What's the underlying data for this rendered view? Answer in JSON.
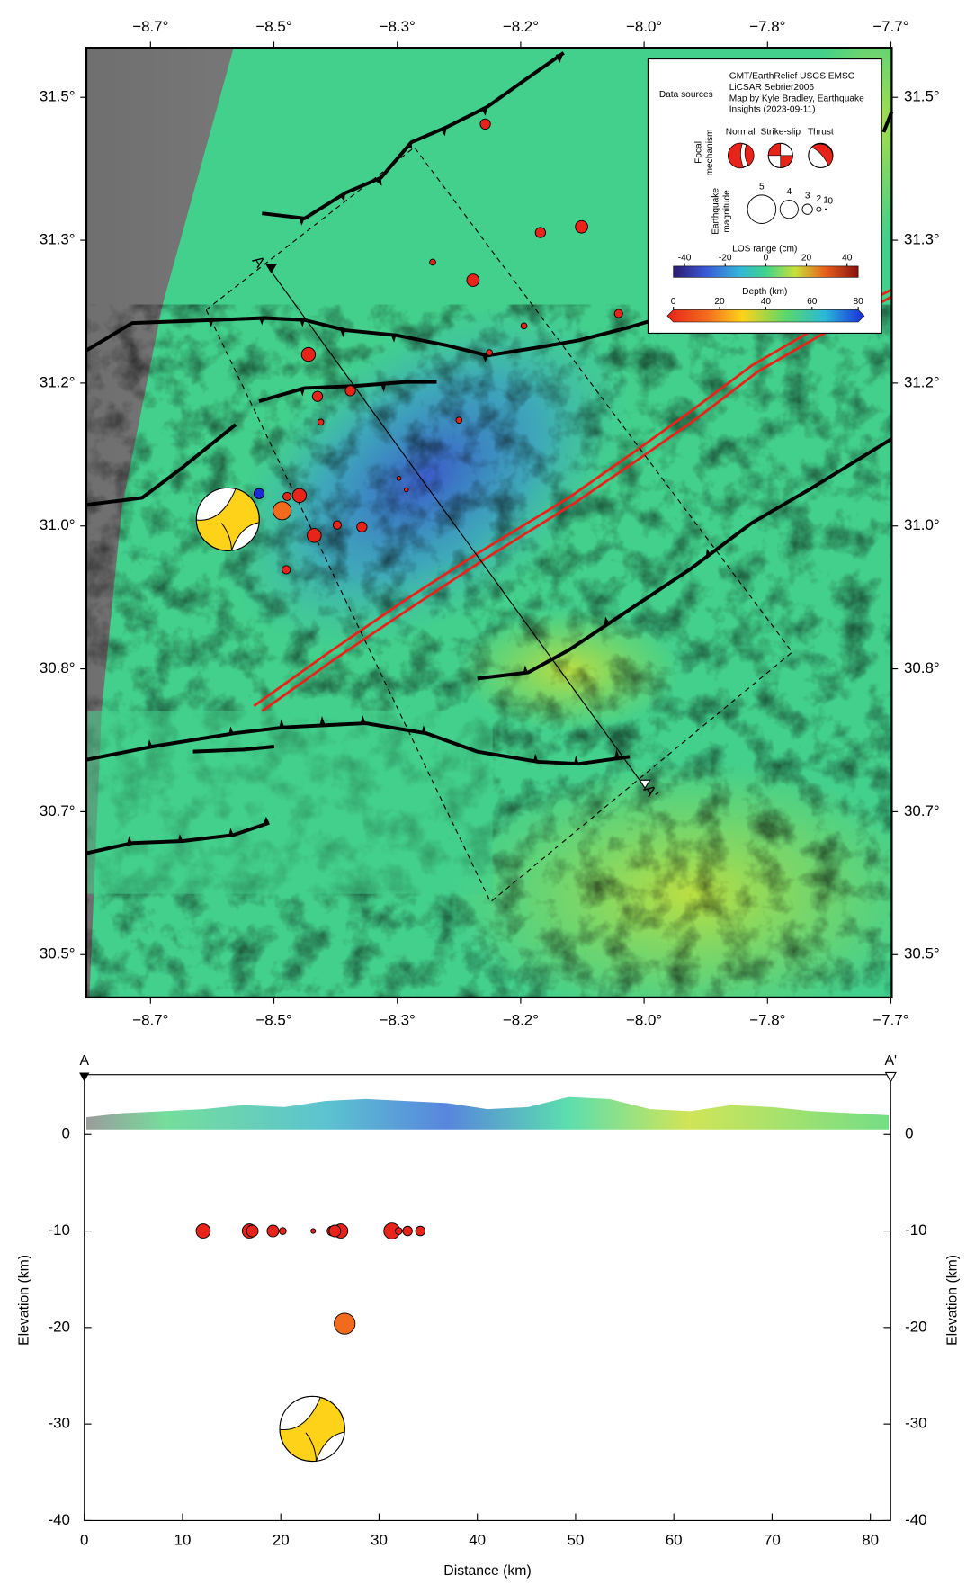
{
  "map": {
    "type": "map",
    "xlim": [
      -8.728,
      -7.749
    ],
    "ylim": [
      30.505,
      31.502
    ],
    "xticks": [
      {
        "value": -8.65,
        "label": "−8.7°"
      },
      {
        "value": -8.5,
        "label": "−8.5°"
      },
      {
        "value": -8.35,
        "label": "−8.3°"
      },
      {
        "value": -8.2,
        "label": "−8.2°"
      },
      {
        "value": -8.05,
        "label": "−8.0°"
      },
      {
        "value": -7.9,
        "label": "−7.8°"
      },
      {
        "value": -7.75,
        "label": "−7.7°"
      }
    ],
    "yticks": [
      {
        "value": 31.45,
        "label": "31.5°"
      },
      {
        "value": 31.3,
        "label": "31.3°"
      },
      {
        "value": 31.15,
        "label": "31.2°"
      },
      {
        "value": 31.0,
        "label": "31.0°"
      },
      {
        "value": 30.85,
        "label": "30.8°"
      },
      {
        "value": 30.7,
        "label": "30.7°"
      },
      {
        "value": 30.55,
        "label": "30.5°"
      }
    ],
    "profile_labels": [
      "A",
      "A'"
    ],
    "events": [
      {
        "lon": -8.243,
        "lat": 31.422,
        "mag": 3.0,
        "color": "#e8231a"
      },
      {
        "lon": -8.126,
        "lat": 31.314,
        "mag": 3.3,
        "color": "#e8231a"
      },
      {
        "lon": -8.176,
        "lat": 31.308,
        "mag": 3.0,
        "color": "#e8231a"
      },
      {
        "lon": -8.258,
        "lat": 31.258,
        "mag": 3.3,
        "color": "#e8231a"
      },
      {
        "lon": -8.307,
        "lat": 31.277,
        "mag": 2.3,
        "color": "#e8231a"
      },
      {
        "lon": -8.196,
        "lat": 31.21,
        "mag": 2.3,
        "color": "#e8231a"
      },
      {
        "lon": -8.238,
        "lat": 31.182,
        "mag": 2.3,
        "color": "#e8231a"
      },
      {
        "lon": -8.081,
        "lat": 31.223,
        "mag": 2.7,
        "color": "#e8231a"
      },
      {
        "lon": -8.458,
        "lat": 31.18,
        "mag": 3.5,
        "color": "#e8231a"
      },
      {
        "lon": -8.407,
        "lat": 31.142,
        "mag": 3.0,
        "color": "#e8231a"
      },
      {
        "lon": -8.447,
        "lat": 31.136,
        "mag": 3.0,
        "color": "#e8231a"
      },
      {
        "lon": -8.443,
        "lat": 31.109,
        "mag": 2.3,
        "color": "#e8231a"
      },
      {
        "lon": -8.275,
        "lat": 31.111,
        "mag": 2.3,
        "color": "#e8231a"
      },
      {
        "lon": -8.469,
        "lat": 31.032,
        "mag": 3.5,
        "color": "#e8231a"
      },
      {
        "lon": -8.484,
        "lat": 31.031,
        "mag": 2.7,
        "color": "#e8231a"
      },
      {
        "lon": -8.49,
        "lat": 31.016,
        "mag": 4.0,
        "color": "#f26b1d"
      },
      {
        "lon": -8.451,
        "lat": 30.99,
        "mag": 3.5,
        "color": "#e8231a"
      },
      {
        "lon": -8.423,
        "lat": 31.001,
        "mag": 2.7,
        "color": "#e8231a"
      },
      {
        "lon": -8.393,
        "lat": 30.999,
        "mag": 3.0,
        "color": "#e8231a"
      },
      {
        "lon": -8.485,
        "lat": 30.954,
        "mag": 2.7,
        "color": "#e8231a"
      },
      {
        "lon": -8.348,
        "lat": 31.05,
        "mag": 1.9,
        "color": "#e8231a"
      },
      {
        "lon": -8.339,
        "lat": 31.038,
        "mag": 1.9,
        "color": "#e8231a"
      },
      {
        "lon": -8.518,
        "lat": 31.034,
        "mag": 3.0,
        "color": "#1a2bd8"
      }
    ],
    "mainshock": {
      "lon": -8.556,
      "lat": 31.007
    }
  },
  "legend": {
    "data_sources_label": "Data sources",
    "sources": [
      "GMT/EarthRelief USGS EMSC",
      "LiCSAR Sebrier2006",
      "Map by Kyle Bradley, Earthquake",
      "Insights (2023-09-11)"
    ],
    "focal_label": [
      "Focal",
      "mechanism"
    ],
    "mechanisms": [
      "Normal",
      "Strike-slip",
      "Thrust"
    ],
    "magnitude_label": [
      "Earthquake",
      "magnitude"
    ],
    "magnitudes": [
      5,
      4,
      3,
      2,
      1,
      0
    ],
    "los_label": "LOS range (cm)",
    "los_lim": [
      -45.5,
      45.5
    ],
    "los_ticks": [
      -40,
      -20,
      0,
      20,
      40
    ],
    "depth_label": "Depth (km)",
    "depth_lim": [
      0,
      80
    ],
    "depth_ticks": [
      0,
      20,
      40,
      60,
      80
    ]
  },
  "chart_data": {
    "type": "scatter",
    "xlabel": "Distance (km)",
    "ylabel": "Elevation (km)",
    "xlim": [
      0,
      82.07
    ],
    "ylim": [
      -40,
      6.2
    ],
    "xticks": [
      0,
      10,
      20,
      30,
      40,
      50,
      60,
      70,
      80
    ],
    "yticks": [
      -40,
      -30,
      -20,
      -10,
      0
    ],
    "points": {
      "x": [
        12.1,
        16.8,
        17.1,
        19.2,
        20.2,
        23.3,
        25.2,
        26.1,
        31.3,
        32.0,
        32.9,
        34.2,
        25.5,
        26.5
      ],
      "y": [
        -10,
        -10,
        -10,
        -10,
        -10,
        -10,
        -10,
        -10,
        -10,
        -10,
        -10,
        -10,
        -10,
        -19.6
      ],
      "mag": [
        3.3,
        3.3,
        3.0,
        3.0,
        2.3,
        1.9,
        2.7,
        3.3,
        3.5,
        2.3,
        2.7,
        2.7,
        3.0,
        4.0
      ],
      "colors": [
        "#e8231a",
        "#e8231a",
        "#e8231a",
        "#e8231a",
        "#e8231a",
        "#e8231a",
        "#e8231a",
        "#e8231a",
        "#e8231a",
        "#e8231a",
        "#e8231a",
        "#e8231a",
        "#e8231a",
        "#f26b1d"
      ]
    },
    "mainshock": {
      "x": 23.2,
      "y": -30.5
    }
  }
}
